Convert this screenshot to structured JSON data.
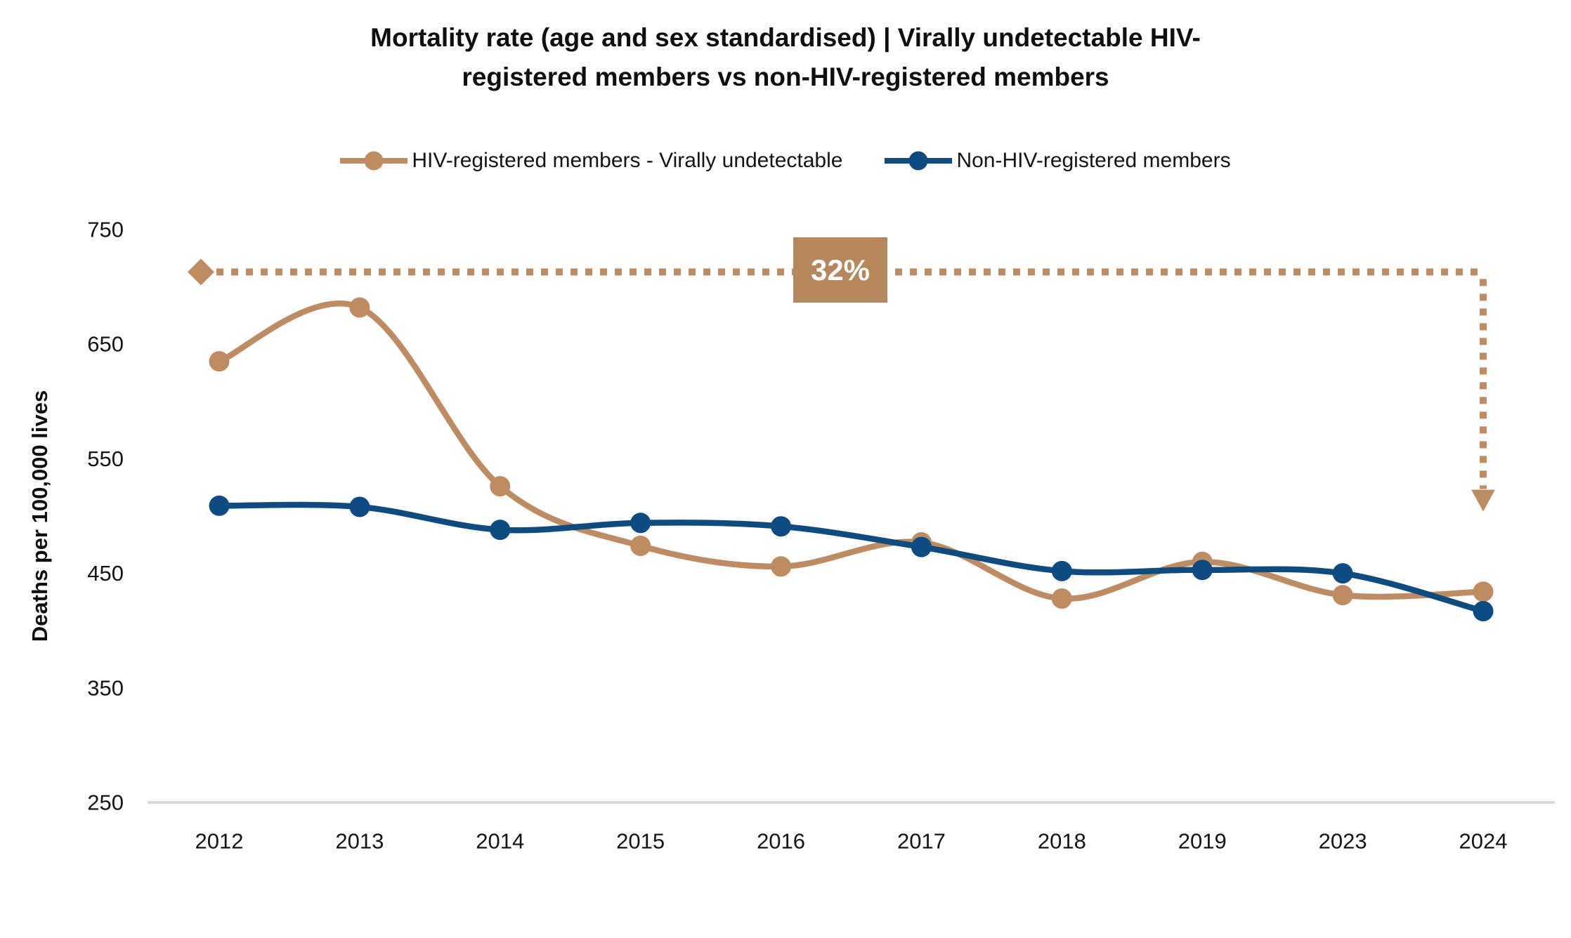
{
  "header": {
    "title_lines": [
      "Mortality rate (age and sex standardised) | Virally undetectable HIV-",
      "registered members vs non-HIV-registered members"
    ]
  },
  "colors": {
    "tan": "#BF8B60",
    "tan_box": "#B6875B",
    "blue": "#0D4C83",
    "axis_line": "#D9D9D9",
    "annotation_text": "#FFFFFF"
  },
  "chart_data": {
    "type": "line",
    "title": "Mortality rate (age and sex standardised) | Virally undetectable HIV-registered members vs non-HIV-registered members",
    "xlabel": "",
    "ylabel": "Deaths per 100,000 lives",
    "categories": [
      "2012",
      "2013",
      "2014",
      "2015",
      "2016",
      "2017",
      "2018",
      "2019",
      "2023",
      "2024"
    ],
    "series": [
      {
        "name": "HIV-registered members - Virally undetectable",
        "color": "#BF8B60",
        "smooth": true,
        "values": [
          635,
          682,
          526,
          474,
          456,
          477,
          428,
          460,
          431,
          434
        ]
      },
      {
        "name": "Non-HIV-registered members",
        "color": "#0D4C83",
        "smooth": true,
        "values": [
          509,
          508,
          488,
          494,
          491,
          473,
          452,
          453,
          450,
          417
        ]
      }
    ],
    "ylim": [
      250,
      750
    ],
    "yticks": [
      250,
      350,
      450,
      550,
      650,
      750
    ],
    "grid": false,
    "legend_position": "top",
    "annotation": {
      "label": "32%",
      "line_value": 713,
      "arrow_tip_value": 504,
      "style": "dotted horizontal line with diamond start and downward dashed arrow at last category"
    }
  }
}
